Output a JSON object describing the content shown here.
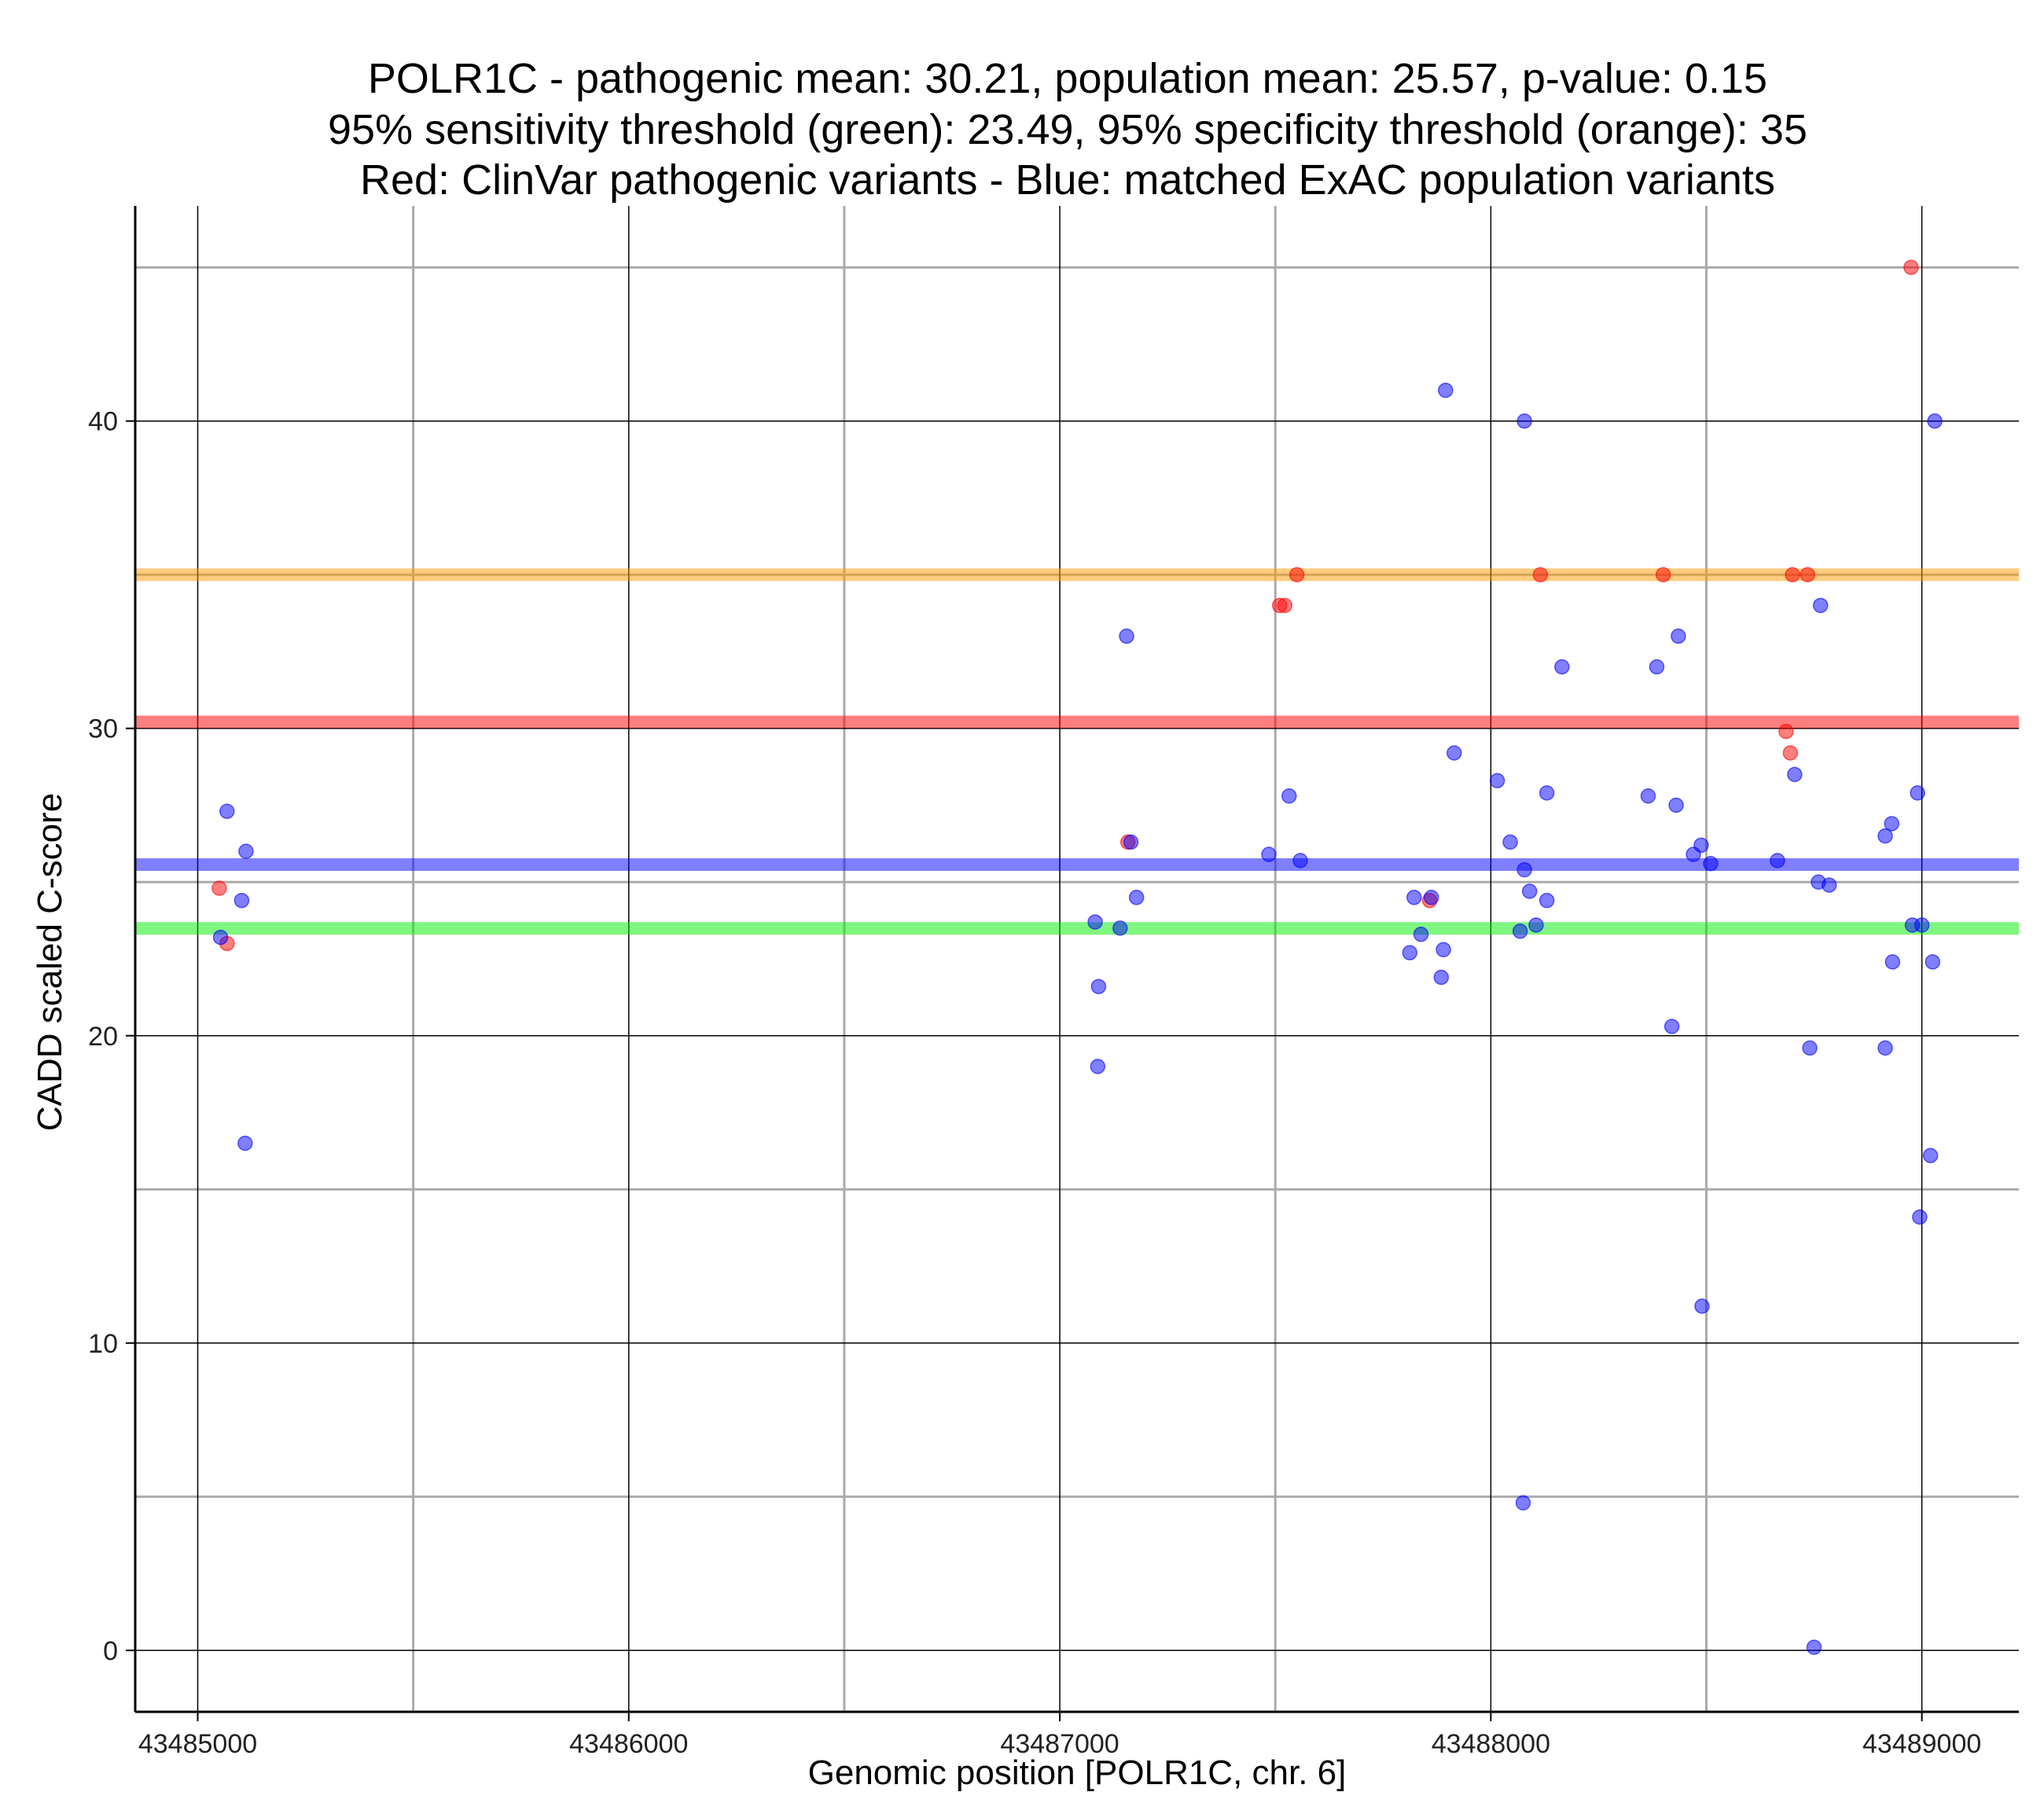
{
  "chart_data": {
    "type": "scatter",
    "title": [
      "POLR1C - pathogenic mean: 30.21, population mean: 25.57, p-value: 0.15",
      "95% sensitivity threshold (green): 23.49, 95% specificity threshold (orange): 35",
      "Red: ClinVar pathogenic variants - Blue: matched ExAC population variants"
    ],
    "xlabel": "Genomic position [POLR1C, chr. 6]",
    "ylabel": "CADD scaled C-score",
    "xlim": [
      43484855,
      43489225
    ],
    "ylim": [
      -2,
      47
    ],
    "xticks": [
      43485000,
      43486000,
      43487000,
      43488000,
      43489000
    ],
    "xtick_labels": [
      "43485000",
      "43486000",
      "43487000",
      "43488000",
      "43489000"
    ],
    "yticks": [
      0,
      10,
      20,
      30,
      40
    ],
    "ytick_labels": [
      "0",
      "10",
      "20",
      "30",
      "40"
    ],
    "x_minor_grid": [
      43485500,
      43486500,
      43487500,
      43488500
    ],
    "y_minor_grid": [
      5,
      15,
      25,
      35,
      45
    ],
    "grid": true,
    "hlines": [
      {
        "name": "pathogenic mean",
        "value": 30.21,
        "color": "#ff0000"
      },
      {
        "name": "population mean",
        "value": 25.57,
        "color": "#0000ff"
      },
      {
        "name": "95% sensitivity threshold",
        "value": 23.49,
        "color": "#00ee00"
      },
      {
        "name": "95% specificity threshold",
        "value": 35,
        "color": "#ff9a00"
      }
    ],
    "series": [
      {
        "name": "ClinVar pathogenic variants",
        "color": "#ff0000",
        "points": [
          {
            "x": 43485050,
            "y": 24.8
          },
          {
            "x": 43485068,
            "y": 23.0
          },
          {
            "x": 43487158,
            "y": 26.3
          },
          {
            "x": 43487510,
            "y": 34.0
          },
          {
            "x": 43487522,
            "y": 34.0
          },
          {
            "x": 43487550,
            "y": 35.0
          },
          {
            "x": 43487858,
            "y": 24.4
          },
          {
            "x": 43488115,
            "y": 35.0
          },
          {
            "x": 43488400,
            "y": 35.0
          },
          {
            "x": 43488685,
            "y": 29.9
          },
          {
            "x": 43488695,
            "y": 29.2
          },
          {
            "x": 43488700,
            "y": 35.0
          },
          {
            "x": 43488735,
            "y": 35.0
          },
          {
            "x": 43488975,
            "y": 45.0
          }
        ]
      },
      {
        "name": "matched ExAC population variants",
        "color": "#0000ff",
        "points": [
          {
            "x": 43485053,
            "y": 23.2
          },
          {
            "x": 43485068,
            "y": 27.3
          },
          {
            "x": 43485102,
            "y": 24.4
          },
          {
            "x": 43485112,
            "y": 26.0
          },
          {
            "x": 43485110,
            "y": 16.5
          },
          {
            "x": 43487082,
            "y": 23.7
          },
          {
            "x": 43487090,
            "y": 21.6
          },
          {
            "x": 43487088,
            "y": 19.0
          },
          {
            "x": 43487140,
            "y": 23.5
          },
          {
            "x": 43487155,
            "y": 33.0
          },
          {
            "x": 43487165,
            "y": 26.3
          },
          {
            "x": 43487178,
            "y": 24.5
          },
          {
            "x": 43487485,
            "y": 25.9
          },
          {
            "x": 43487532,
            "y": 27.8
          },
          {
            "x": 43487558,
            "y": 25.7
          },
          {
            "x": 43487812,
            "y": 22.7
          },
          {
            "x": 43487822,
            "y": 24.5
          },
          {
            "x": 43487838,
            "y": 23.3
          },
          {
            "x": 43487862,
            "y": 24.5
          },
          {
            "x": 43487885,
            "y": 21.9
          },
          {
            "x": 43487890,
            "y": 22.8
          },
          {
            "x": 43487895,
            "y": 41.0
          },
          {
            "x": 43487915,
            "y": 29.2
          },
          {
            "x": 43488015,
            "y": 28.3
          },
          {
            "x": 43488045,
            "y": 26.3
          },
          {
            "x": 43488068,
            "y": 23.4
          },
          {
            "x": 43488078,
            "y": 40.0
          },
          {
            "x": 43488078,
            "y": 25.4
          },
          {
            "x": 43488090,
            "y": 24.7
          },
          {
            "x": 43488105,
            "y": 23.6
          },
          {
            "x": 43488130,
            "y": 24.4
          },
          {
            "x": 43488130,
            "y": 27.9
          },
          {
            "x": 43488165,
            "y": 32.0
          },
          {
            "x": 43488075,
            "y": 4.8
          },
          {
            "x": 43488365,
            "y": 27.8
          },
          {
            "x": 43488385,
            "y": 32.0
          },
          {
            "x": 43488420,
            "y": 20.3
          },
          {
            "x": 43488430,
            "y": 27.5
          },
          {
            "x": 43488435,
            "y": 33.0
          },
          {
            "x": 43488470,
            "y": 25.9
          },
          {
            "x": 43488488,
            "y": 26.2
          },
          {
            "x": 43488490,
            "y": 11.2
          },
          {
            "x": 43488510,
            "y": 25.6
          },
          {
            "x": 43488665,
            "y": 25.7
          },
          {
            "x": 43488705,
            "y": 28.5
          },
          {
            "x": 43488740,
            "y": 19.6
          },
          {
            "x": 43488750,
            "y": 0.1
          },
          {
            "x": 43488760,
            "y": 25.0
          },
          {
            "x": 43488765,
            "y": 34.0
          },
          {
            "x": 43488785,
            "y": 24.9
          },
          {
            "x": 43488915,
            "y": 26.5
          },
          {
            "x": 43488915,
            "y": 19.6
          },
          {
            "x": 43488930,
            "y": 26.9
          },
          {
            "x": 43488932,
            "y": 22.4
          },
          {
            "x": 43488978,
            "y": 23.6
          },
          {
            "x": 43488990,
            "y": 27.9
          },
          {
            "x": 43489000,
            "y": 23.6
          },
          {
            "x": 43488995,
            "y": 14.1
          },
          {
            "x": 43489020,
            "y": 16.1
          },
          {
            "x": 43489025,
            "y": 22.4
          },
          {
            "x": 43489030,
            "y": 40.0
          }
        ]
      }
    ]
  }
}
